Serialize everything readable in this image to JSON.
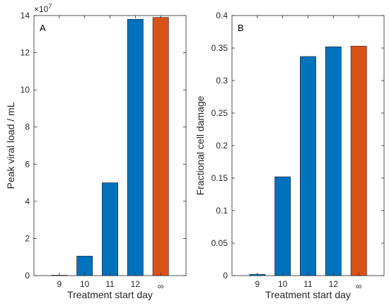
{
  "colors": {
    "bar_blue": "#0072BD",
    "bar_orange": "#D95319",
    "axis": "#262626"
  },
  "chart_data": [
    {
      "type": "bar",
      "panel_label": "A",
      "categories": [
        "9",
        "10",
        "11",
        "12",
        "∞"
      ],
      "values": [
        200000.0,
        10500000,
        50000000,
        138000000,
        139000000
      ],
      "bar_colors": [
        "bar_blue",
        "bar_blue",
        "bar_blue",
        "bar_blue",
        "bar_orange"
      ],
      "xlabel": "Treatment start day",
      "ylabel": "Peak viral load / mL",
      "ylim": [
        0,
        140000000
      ],
      "ytick_values": [
        0,
        2,
        4,
        6,
        8,
        10,
        12,
        14
      ],
      "ytick_multiplier": 10000000,
      "exponent_base": "×10",
      "exponent_power": "7",
      "grid": false
    },
    {
      "type": "bar",
      "panel_label": "B",
      "categories": [
        "9",
        "10",
        "11",
        "12",
        "∞"
      ],
      "values": [
        0.002,
        0.152,
        0.337,
        0.352,
        0.353
      ],
      "bar_colors": [
        "bar_blue",
        "bar_blue",
        "bar_blue",
        "bar_blue",
        "bar_orange"
      ],
      "xlabel": "Treatment start day",
      "ylabel": "Fractional cell damage",
      "ylim": [
        0,
        0.4
      ],
      "yticks": [
        "0",
        "0.05",
        "0.1",
        "0.15",
        "0.2",
        "0.25",
        "0.3",
        "0.35",
        "0.4"
      ],
      "ytick_values": [
        0,
        0.05,
        0.1,
        0.15,
        0.2,
        0.25,
        0.3,
        0.35,
        0.4
      ],
      "grid": false
    }
  ]
}
